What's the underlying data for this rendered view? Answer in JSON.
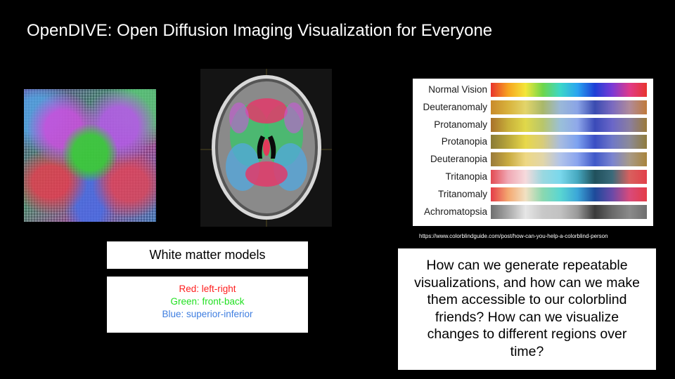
{
  "slide": {
    "title": "OpenDIVE: Open Diffusion Imaging Visualization for Everyone",
    "models_label": "White matter models",
    "legend": [
      {
        "text": "Red: left-right",
        "color": "#ff1e1e"
      },
      {
        "text": "Green: front-back",
        "color": "#22e022"
      },
      {
        "text": "Blue: superior-inferior",
        "color": "#3f7ee0"
      }
    ],
    "colorblind_rows": [
      {
        "label": "Normal Vision",
        "stops": [
          "#e8342e",
          "#f7a420",
          "#f4e63a",
          "#6ed64a",
          "#3bd7c8",
          "#2aa4f0",
          "#1d3fd6",
          "#7a3ad6",
          "#e03a8a",
          "#e8342e"
        ]
      },
      {
        "label": "Deuteranomaly",
        "stops": [
          "#c98a2a",
          "#d8b23c",
          "#e3d56a",
          "#a9b86a",
          "#9ab8d8",
          "#8aa4e6",
          "#3a4bb0",
          "#7a6ac0",
          "#b08a9a",
          "#c07a3a"
        ]
      },
      {
        "label": "Protanomaly",
        "stops": [
          "#a8702a",
          "#c8b03a",
          "#e0d84a",
          "#b8c66a",
          "#9ac0d8",
          "#8fa8ea",
          "#3a4ab8",
          "#6a66c8",
          "#8a7ea0",
          "#9a7a3a"
        ]
      },
      {
        "label": "Protanopia",
        "stops": [
          "#8a7a36",
          "#b8a63a",
          "#e8d84a",
          "#d8cc7a",
          "#a8bce0",
          "#7da2f0",
          "#3a4ec4",
          "#6f78c8",
          "#8c8a98",
          "#8f7b3c"
        ]
      },
      {
        "label": "Deuteranopia",
        "stops": [
          "#9a7a3a",
          "#c8aa40",
          "#eed884",
          "#e2d6a8",
          "#b2c4ea",
          "#8aa4ee",
          "#3f58c8",
          "#7a84d0",
          "#a89a88",
          "#a8843c"
        ]
      },
      {
        "label": "Tritanopia",
        "stops": [
          "#e24a52",
          "#f0a8b4",
          "#f6dadc",
          "#9ad8e0",
          "#7ad8ec",
          "#46a8c0",
          "#20505c",
          "#3a6a7a",
          "#d8605e",
          "#e2404a"
        ]
      },
      {
        "label": "Tritanomaly",
        "stops": [
          "#e43c48",
          "#f4a870",
          "#f2e0c2",
          "#8ad8b0",
          "#5ad6d2",
          "#3ba6d8",
          "#1d4a9a",
          "#6a4aa8",
          "#d84a7a",
          "#e43c48"
        ]
      },
      {
        "label": "Achromatopsia",
        "stops": [
          "#6e6e6e",
          "#a8a8a8",
          "#e6e6e6",
          "#c8c8c8",
          "#c2c2c2",
          "#9a9a9a",
          "#3a3a3a",
          "#6a6a6a",
          "#8a8a8a",
          "#6e6e6e"
        ]
      }
    ],
    "source_url": "https://www.colorblindguide.com/post/how-can-you-help-a-colorblind-person",
    "question": "How can we generate repeatable visualizations, and how can we make them accessible to our colorblind friends? How can we visualize changes to different regions over time?"
  }
}
